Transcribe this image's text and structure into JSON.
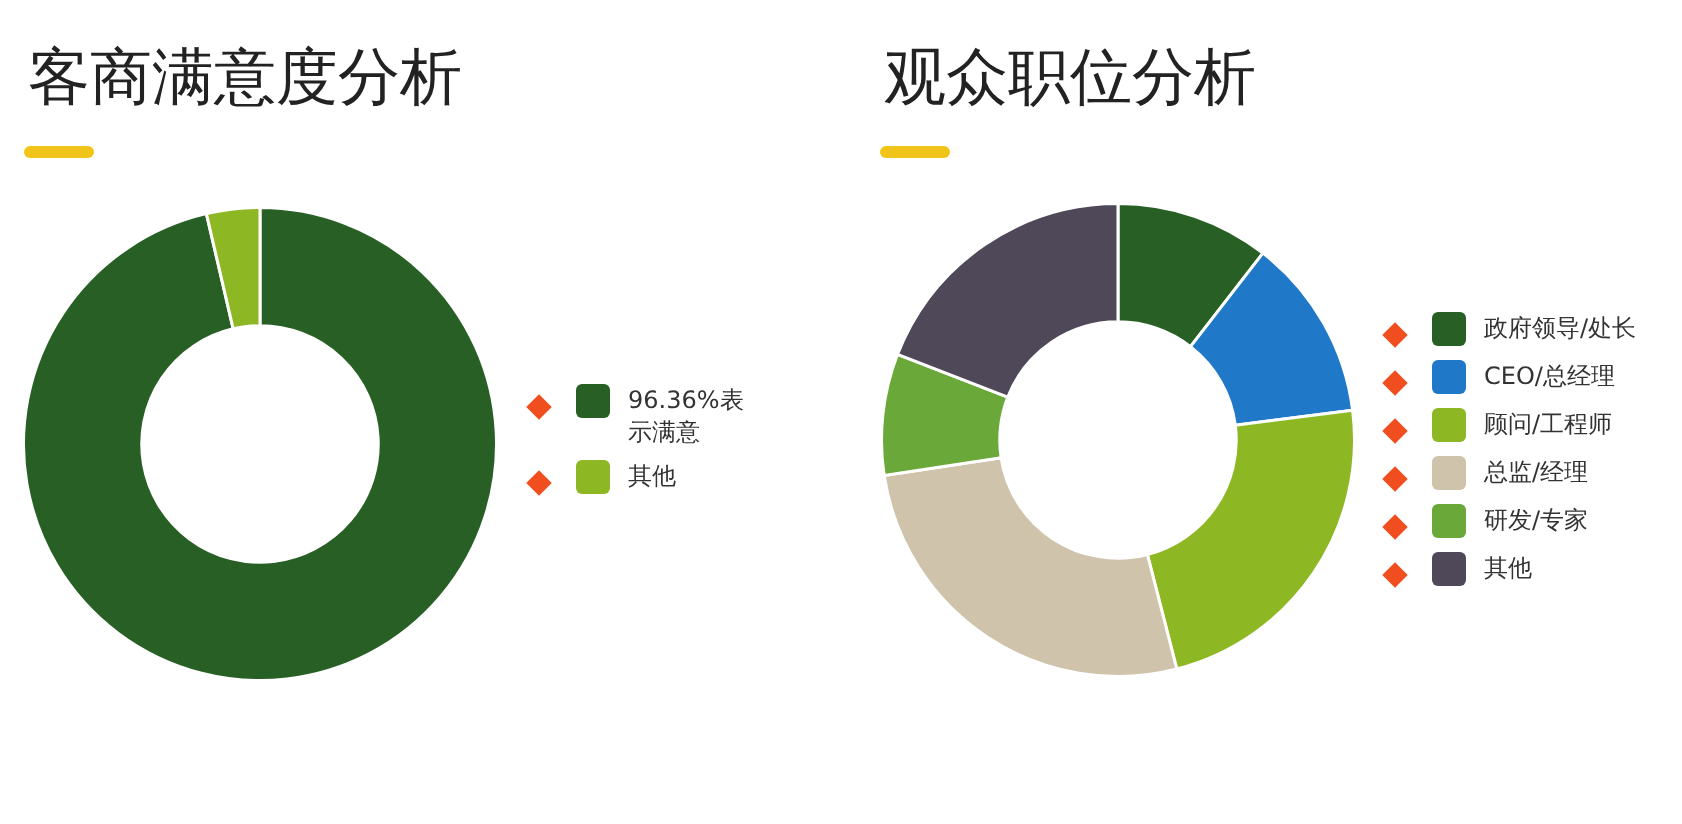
{
  "chart_data": [
    {
      "type": "donut",
      "title": "客商满意度分析",
      "categories": [
        "96.36%表示满意",
        "其他"
      ],
      "values": [
        96.36,
        3.64
      ],
      "colors": [
        "#275f24",
        "#8db824"
      ],
      "legend": "right"
    },
    {
      "type": "donut",
      "title": "观众职位分析",
      "categories": [
        "政府领导/处长",
        "CEO/总经理",
        "顾问/工程师",
        "总监/经理",
        "研发/专家",
        "其他"
      ],
      "values": [
        10.5,
        12.5,
        23,
        26.6,
        8.3,
        19.1
      ],
      "colors": [
        "#275f24",
        "#1f78c8",
        "#8db824",
        "#cfc3ab",
        "#6aa83a",
        "#4f4859"
      ],
      "legend": "right"
    }
  ]
}
